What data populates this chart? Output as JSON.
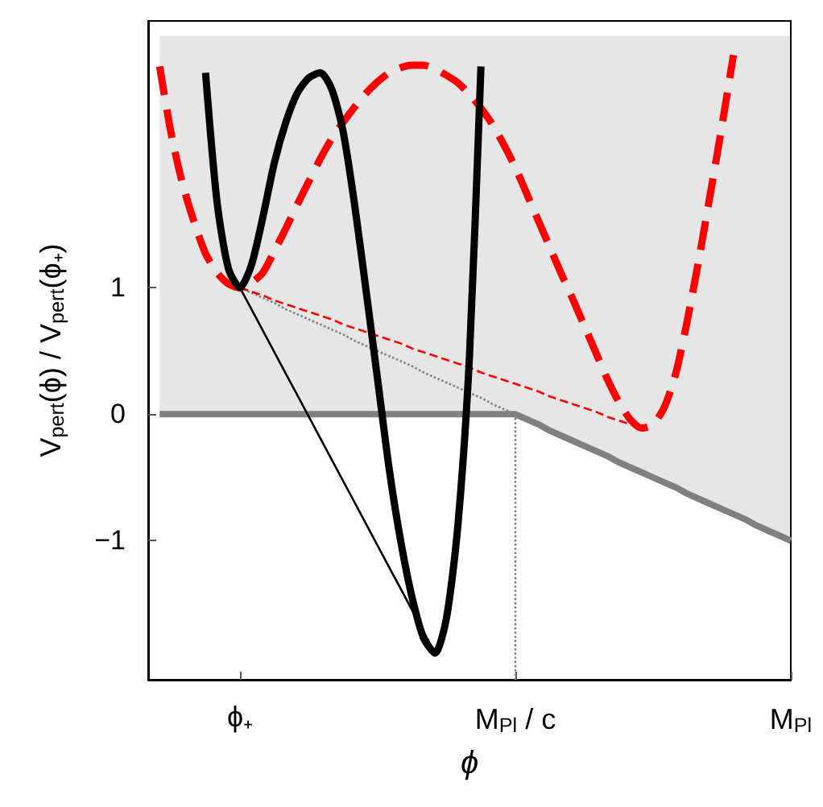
{
  "chart_data": {
    "type": "line",
    "xlabel": "ϕ",
    "ylabel": "V$_{pert}$(ϕ) / V$_{pert}$(ϕ₊)",
    "categories": [
      null,
      null,
      null,
      null,
      null,
      null,
      null,
      null,
      "ϕ₊",
      null,
      null,
      null,
      null,
      null,
      null,
      null,
      null,
      null,
      null,
      null,
      null,
      null,
      null,
      null,
      null,
      null,
      null,
      null,
      null,
      null,
      null,
      null,
      "M$_{Pl}$ / c",
      null,
      null,
      null,
      null,
      null,
      null,
      null,
      null,
      null,
      null,
      null,
      null,
      null,
      null,
      null,
      null,
      null,
      null,
      null,
      null,
      null,
      null,
      null,
      "M$_{Pl}$"
    ],
    "ylim": [
      -2.1,
      3.11
    ],
    "yticks": [
      {
        "value": -1,
        "label": "−1"
      },
      0,
      1
    ],
    "grid": false,
    "ref_lines": [
      {
        "axis": "x",
        "value": "M$_{Pl}$ / c",
        "color": "#808080",
        "line_style": "dotted"
      }
    ],
    "series": [
      {
        "color": "#808080",
        "line_style": "solid",
        "values": [
          null,
          0,
          0,
          0,
          0,
          0,
          0,
          0,
          0,
          0,
          0,
          0,
          0,
          0,
          0,
          0,
          0,
          0,
          0,
          0,
          0,
          0,
          0,
          0,
          0,
          0,
          0,
          0,
          0,
          0,
          0,
          0,
          0,
          -0.04,
          -0.08,
          -0.13,
          -0.17,
          -0.21,
          -0.25,
          -0.29,
          -0.33,
          -0.38,
          -0.42,
          -0.46,
          -0.5,
          -0.54,
          -0.58,
          -0.63,
          -0.67,
          -0.71,
          -0.75,
          -0.79,
          -0.83,
          -0.88,
          -0.92,
          -0.96,
          -1
        ],
        "lower": [
          null,
          0,
          0,
          0,
          0,
          0,
          0,
          0,
          0,
          0,
          0,
          0,
          0,
          0,
          0,
          0,
          0,
          0,
          0,
          0,
          0,
          0,
          0,
          0,
          0,
          0,
          0,
          0,
          0,
          0,
          0,
          0,
          0,
          -0.04,
          -0.08,
          -0.13,
          -0.17,
          -0.21,
          -0.25,
          -0.29,
          -0.33,
          -0.38,
          -0.42,
          -0.46,
          -0.5,
          -0.54,
          -0.58,
          -0.63,
          -0.67,
          -0.71,
          -0.75,
          -0.79,
          -0.83,
          -0.88,
          -0.92,
          -0.96,
          -1
        ],
        "upper": [
          null,
          2.99,
          2.99,
          2.99,
          2.99,
          2.99,
          2.99,
          2.99,
          2.99,
          2.99,
          2.99,
          2.99,
          2.99,
          2.99,
          2.99,
          2.99,
          2.99,
          2.99,
          2.99,
          2.99,
          2.99,
          2.99,
          2.99,
          2.99,
          2.99,
          2.99,
          2.99,
          2.99,
          2.99,
          2.99,
          2.99,
          2.99,
          2.99,
          2.99,
          2.99,
          2.99,
          2.99,
          2.99,
          2.99,
          2.99,
          2.99,
          2.99,
          2.99,
          2.99,
          2.99,
          2.99,
          2.99,
          2.99,
          2.99,
          2.99,
          2.99,
          2.99,
          2.99,
          2.99,
          2.99,
          2.99,
          2.99
        ]
      },
      {
        "color": "#808080",
        "line_style": "dotted",
        "values": [
          null,
          null,
          null,
          null,
          null,
          null,
          null,
          null,
          1,
          0.96,
          0.92,
          0.88,
          0.83,
          0.79,
          0.75,
          0.71,
          0.67,
          0.63,
          0.58,
          0.54,
          0.5,
          0.46,
          0.42,
          0.38,
          0.33,
          0.29,
          0.25,
          0.21,
          0.17,
          0.13,
          0.08,
          0.04,
          0,
          null,
          null,
          null,
          null,
          null,
          null,
          null,
          null,
          null,
          null,
          null,
          null,
          null,
          null,
          null,
          null,
          null,
          null,
          null,
          null,
          null,
          null,
          null,
          null
        ]
      },
      {
        "color": "#ff0000",
        "line_style": "dashed",
        "values": [
          null,
          null,
          null,
          null,
          null,
          null,
          null,
          null,
          1,
          0.97,
          0.94,
          0.9,
          0.87,
          0.84,
          0.81,
          0.78,
          0.75,
          0.71,
          0.68,
          0.65,
          0.62,
          0.59,
          0.56,
          0.52,
          0.49,
          0.46,
          0.43,
          0.4,
          0.37,
          0.33,
          0.3,
          0.27,
          0.24,
          0.21,
          0.18,
          0.14,
          0.11,
          0.08,
          0.05,
          0.02,
          -0.02,
          -0.05,
          -0.08,
          -0.11,
          null,
          null,
          null,
          null,
          null,
          null,
          null,
          null,
          null,
          null,
          null,
          null,
          null
        ]
      },
      {
        "color": "#000000",
        "line_style": "solid",
        "values": [
          null,
          null,
          null,
          null,
          null,
          null,
          null,
          null,
          1,
          0.83,
          0.66,
          0.49,
          0.32,
          0.15,
          -0.02,
          -0.19,
          -0.36,
          -0.53,
          -0.7,
          -0.87,
          -1.04,
          -1.21,
          -1.38,
          -1.55,
          -1.72,
          -1.89,
          null,
          null,
          null,
          null,
          null,
          null,
          null,
          null,
          null,
          null,
          null,
          null,
          null,
          null,
          null,
          null,
          null,
          null,
          null,
          null,
          null,
          null,
          null,
          null,
          null,
          null,
          null,
          null,
          null,
          null,
          null
        ]
      },
      {
        "color": "#ff0000",
        "line_style": "dashed",
        "values": [
          null,
          2.75,
          2.22,
          1.82,
          1.52,
          1.27,
          1.12,
          1.03,
          1,
          1.04,
          1.12,
          1.29,
          1.47,
          1.66,
          1.84,
          2.02,
          2.18,
          2.31,
          2.43,
          2.54,
          2.63,
          2.7,
          2.74,
          2.76,
          2.76,
          2.73,
          2.68,
          2.62,
          2.53,
          2.42,
          2.29,
          2.13,
          1.95,
          1.74,
          1.53,
          1.32,
          1.11,
          0.91,
          0.7,
          0.49,
          0.28,
          0.1,
          -0.04,
          -0.11,
          -0.08,
          0.06,
          0.33,
          0.75,
          1.23,
          1.75,
          2.28,
          2.84,
          null,
          null,
          null,
          null,
          null
        ]
      },
      {
        "color": "#000000",
        "line_style": "solid",
        "values": [
          null,
          null,
          null,
          null,
          null,
          2.7,
          1.68,
          1.15,
          1,
          1.18,
          1.56,
          1.99,
          2.31,
          2.54,
          2.66,
          2.7,
          2.57,
          2.23,
          1.65,
          0.97,
          0.27,
          -0.43,
          -1.0,
          -1.45,
          -1.77,
          -1.89,
          -1.61,
          -0.87,
          0.46,
          2.75,
          null,
          null,
          null,
          null,
          null,
          null,
          null,
          null,
          null,
          null,
          null,
          null,
          null,
          null,
          null,
          null,
          null,
          null,
          null,
          null,
          null,
          null,
          null,
          null,
          null,
          null,
          null
        ]
      }
    ]
  }
}
